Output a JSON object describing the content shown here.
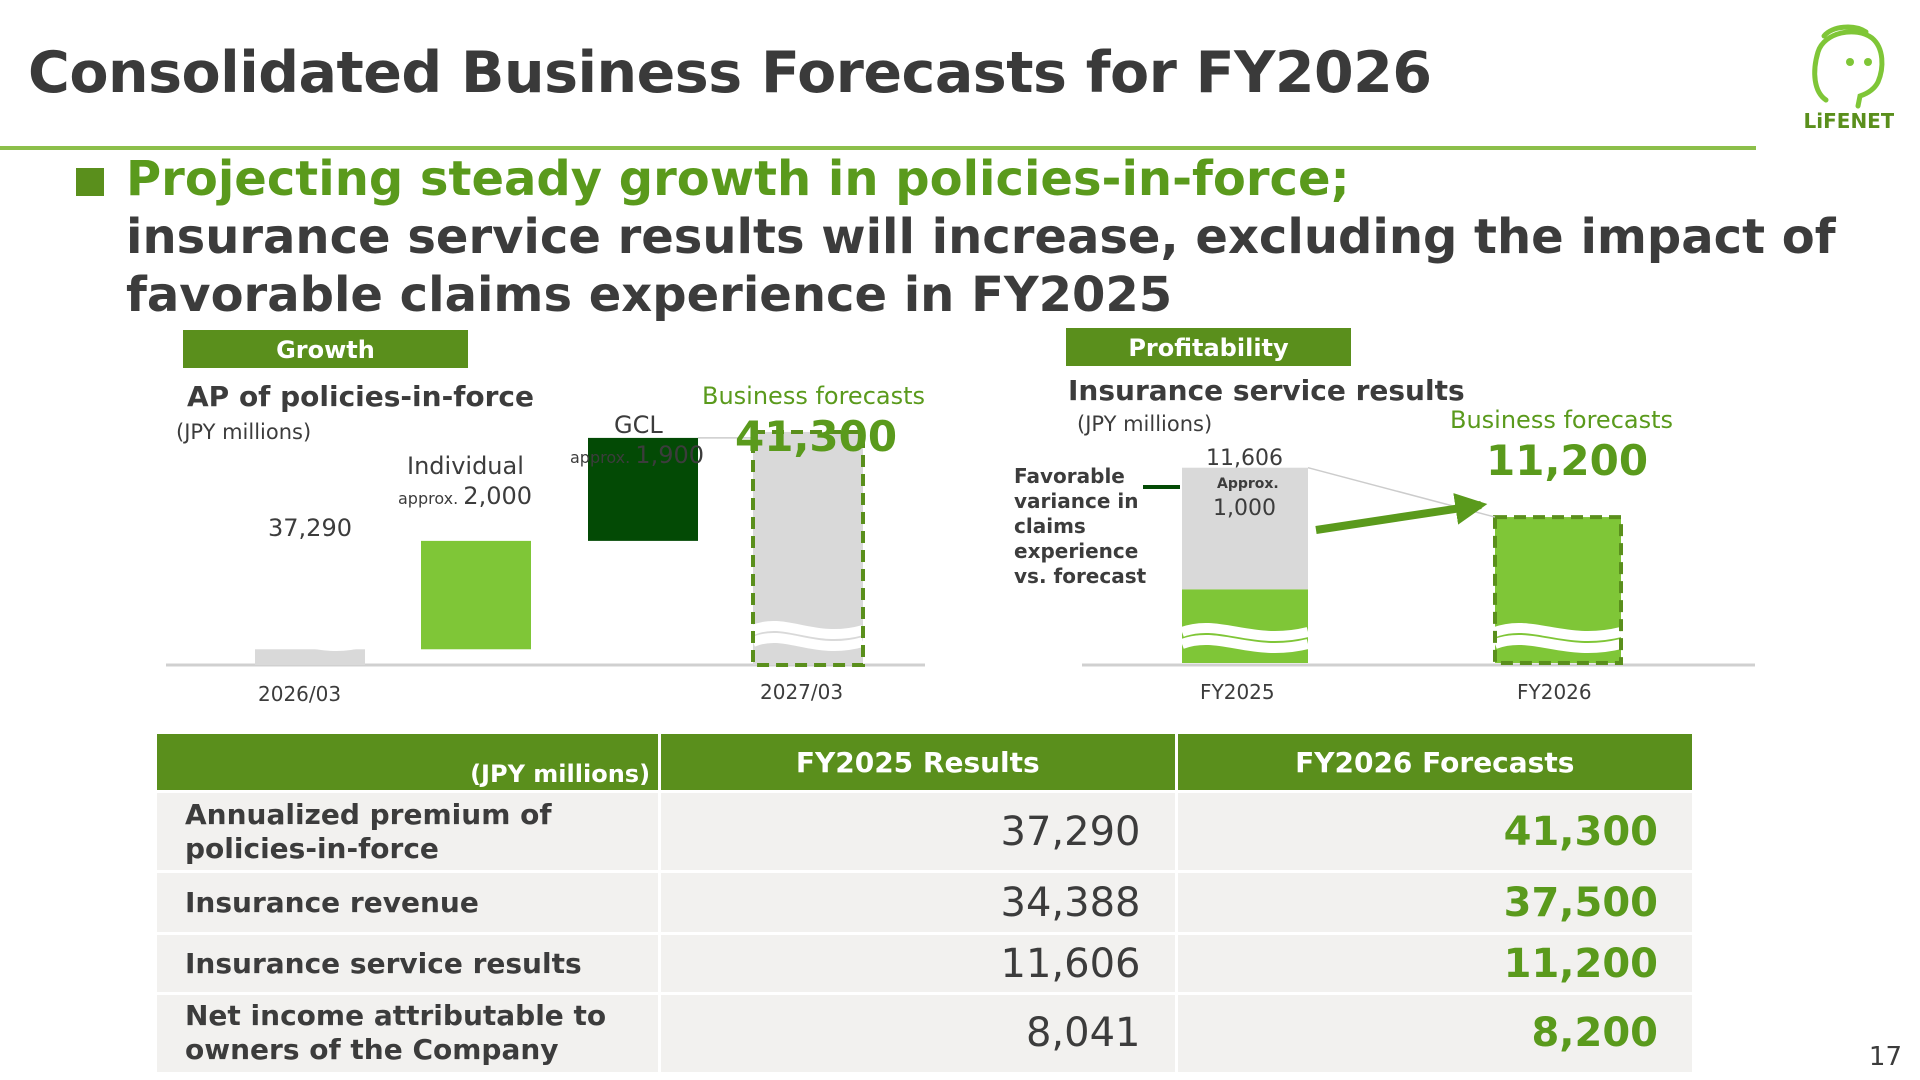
{
  "slide": {
    "title": "Consolidated Business Forecasts for FY2026",
    "headline_green": "Projecting steady growth in policies-in-force;",
    "headline_line2": "insurance service results will increase, excluding the impact of",
    "headline_line3": "favorable claims experience in FY2025",
    "page_number": "17",
    "logo_text": "LiFENET"
  },
  "colors": {
    "brand_green": "#5a8f1c",
    "light_green": "#7fc637",
    "dark_green": "#034a05",
    "bar_gray": "#d9d9d9",
    "text_green": "#5a9a1c"
  },
  "growth": {
    "tag": "Growth",
    "chart_title": "AP of policies-in-force",
    "unit": "(JPY millions)",
    "start_label": "37,290",
    "individual_label": "Individual",
    "individual_prefix": "approx.",
    "individual_value": "2,000",
    "gcl_label": "GCL",
    "gcl_prefix": "approx.",
    "gcl_value": "1,900",
    "forecast_caption": "Business forecasts",
    "forecast_value": "41,300",
    "x_start": "2026/03",
    "x_end": "2027/03"
  },
  "profitability": {
    "tag": "Profitability",
    "chart_title": "Insurance service results",
    "unit": "(JPY millions)",
    "fy2025_label": "11,606",
    "approx_label": "Approx.",
    "approx_value": "1,000",
    "annotation": [
      "Favorable",
      "variance in",
      "claims",
      "experience",
      "vs. forecast"
    ],
    "forecast_caption": "Business forecasts",
    "forecast_value": "11,200",
    "x_fy2025": "FY2025",
    "x_fy2026": "FY2026"
  },
  "chart_data": [
    {
      "type": "bar",
      "subtype": "waterfall",
      "title": "AP of policies-in-force",
      "unit": "(JPY millions)",
      "categories": [
        "2026/03",
        "Individual",
        "GCL",
        "2027/03"
      ],
      "values": [
        37290,
        2000,
        1900,
        41300
      ],
      "labels": [
        "37,290",
        "approx. 2,000",
        "approx. 1,900",
        "41,300"
      ],
      "forecast_label": "Business forecasts"
    },
    {
      "type": "bar",
      "subtype": "stacked",
      "title": "Insurance service results",
      "unit": "(JPY millions)",
      "categories": [
        "FY2025",
        "FY2026"
      ],
      "values": [
        11606,
        11200
      ],
      "favorable_variance": 1000,
      "labels": [
        "11,606",
        "11,200"
      ],
      "forecast_label": "Business forecasts"
    }
  ],
  "table": {
    "header_unit": "(JPY millions)",
    "col1": "FY2025 Results",
    "col2": "FY2026 Forecasts",
    "rows": [
      {
        "label1": "Annualized premium of",
        "label2": "policies-in-force",
        "v1": "37,290",
        "v2": "41,300"
      },
      {
        "label1": "Insurance revenue",
        "label2": "",
        "v1": "34,388",
        "v2": "37,500"
      },
      {
        "label1": "Insurance service results",
        "label2": "",
        "v1": "11,606",
        "v2": "11,200"
      },
      {
        "label1": "Net income attributable to",
        "label2": "owners of the Company",
        "v1": "8,041",
        "v2": "8,200"
      }
    ]
  }
}
